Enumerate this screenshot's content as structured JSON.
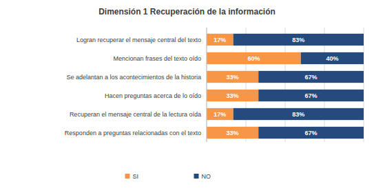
{
  "chart_data": {
    "type": "bar",
    "orientation": "horizontal",
    "stacked": true,
    "title": "Dimensión 1 Recuperación de la información",
    "categories": [
      "Logran recuperar el mensaje central del texto",
      "Mencionan frases del texto oído",
      "Se adelantan a los acontecimientos de la historia",
      "Hacen preguntas acerca de lo oído",
      "Recuperan el mensaje central de la lectura oída",
      "Responden a preguntas relacionadas con el texto"
    ],
    "series": [
      {
        "name": "SI",
        "color": "#F79646",
        "values": [
          17,
          60,
          33,
          33,
          17,
          33
        ],
        "value_labels": [
          "17%",
          "60%",
          "33%",
          "33%",
          "17%",
          "33%"
        ]
      },
      {
        "name": "NO",
        "color": "#254A7C",
        "values": [
          83,
          40,
          67,
          67,
          83,
          67
        ],
        "value_labels": [
          "83%",
          "40%",
          "67%",
          "67%",
          "83%",
          "67%"
        ]
      }
    ],
    "xlim": [
      0,
      100
    ],
    "xticks": [
      0,
      25,
      50,
      75,
      100
    ],
    "grid": true,
    "tick_labels": false,
    "data_labels": true,
    "legend": "bottom"
  }
}
